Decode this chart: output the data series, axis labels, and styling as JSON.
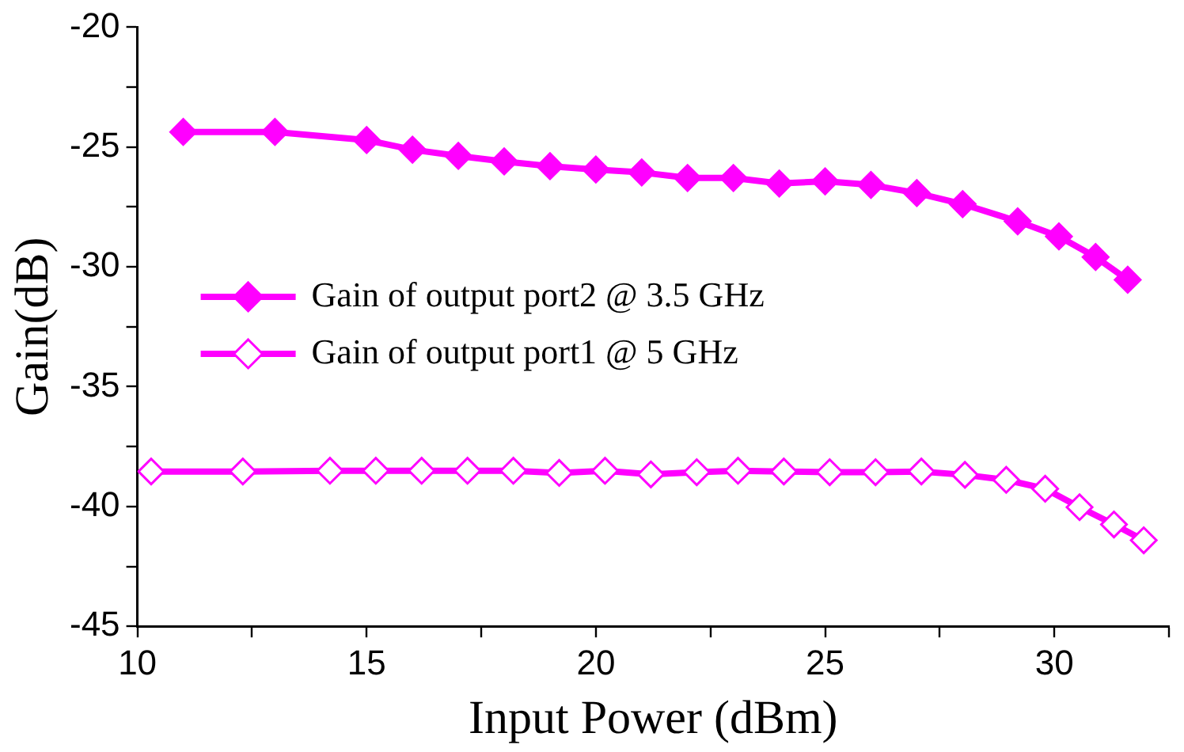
{
  "chart_data": {
    "type": "line",
    "xlabel": "Input Power (dBm)",
    "ylabel": "Gain(dB)",
    "xlim": [
      10,
      32.5
    ],
    "ylim": [
      -45,
      -20
    ],
    "xticks": [
      10,
      {
        "value": 12.5,
        "label": null
      },
      15,
      {
        "value": 17.5,
        "label": null
      },
      20,
      {
        "value": 22.5,
        "label": null
      },
      25,
      {
        "value": 27.5,
        "label": null
      },
      30,
      {
        "value": 32.5,
        "label": null
      }
    ],
    "yticks": [
      -45,
      {
        "value": -42.5,
        "label": null
      },
      -40,
      {
        "value": -37.5,
        "label": null
      },
      -35,
      {
        "value": -32.5,
        "label": null
      },
      -30,
      {
        "value": -27.5,
        "label": null
      },
      -25,
      {
        "value": -22.5,
        "label": null
      },
      -20
    ],
    "grid": false,
    "legend": "left",
    "marker": "diamond",
    "line_style": "solid",
    "series": [
      {
        "name": "Gain of output port2 @ 3.5 GHz",
        "color": "#ff00ff",
        "x": [
          11,
          13,
          15,
          16,
          17,
          18,
          19,
          20,
          21,
          22,
          23,
          24,
          25,
          26,
          27,
          28,
          29.2,
          30.1,
          30.9,
          31.6
        ],
        "values": [
          -24.37,
          -24.37,
          -24.71,
          -25.11,
          -25.37,
          -25.6,
          -25.8,
          -25.94,
          -26.06,
          -26.29,
          -26.29,
          -26.52,
          -26.43,
          -26.58,
          -26.92,
          -27.38,
          -28.1,
          -28.73,
          -29.59,
          -30.54
        ]
      },
      {
        "name": "Gain of output port1 @ 5 GHz",
        "color": "#ff00ff",
        "x": [
          10.3,
          12.3,
          14.2,
          15.2,
          16.2,
          17.2,
          18.2,
          19.2,
          20.2,
          21.2,
          22.2,
          23.1,
          24.1,
          25.1,
          26.1,
          27.1,
          28.05,
          28.95,
          29.8,
          30.55,
          31.3,
          31.95
        ],
        "values": [
          -38.54,
          -38.54,
          -38.51,
          -38.51,
          -38.51,
          -38.51,
          -38.51,
          -38.6,
          -38.51,
          -38.66,
          -38.57,
          -38.51,
          -38.54,
          -38.57,
          -38.57,
          -38.54,
          -38.68,
          -38.89,
          -39.26,
          -40.03,
          -40.75,
          -41.41
        ]
      }
    ]
  }
}
